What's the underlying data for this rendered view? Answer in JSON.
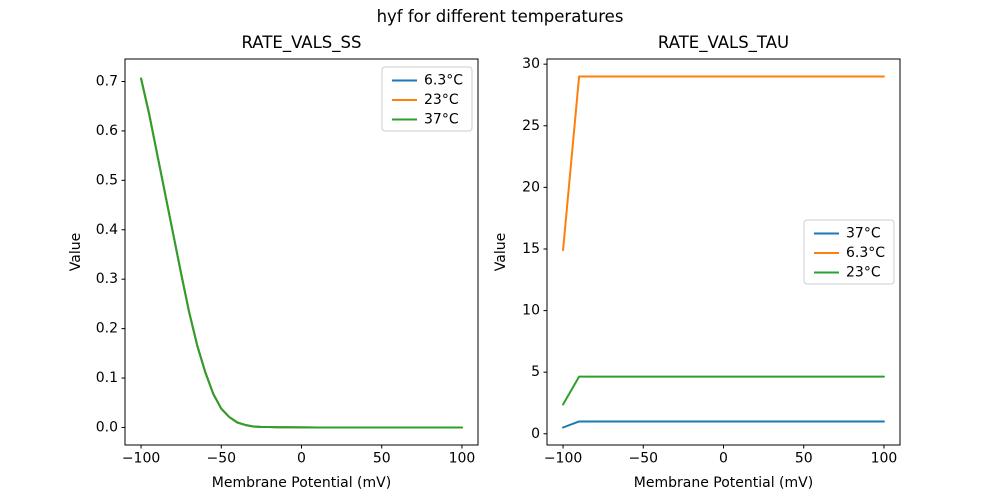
{
  "figure": {
    "title": "hyf for different temperatures",
    "background": "#ffffff"
  },
  "colors": {
    "blue": "#1f77b4",
    "orange": "#ff7f0e",
    "green": "#2ca02c",
    "spine": "#000000",
    "legend_border": "#cccccc",
    "legend_fill": "#ffffff",
    "text": "#000000"
  },
  "chart_data": [
    {
      "type": "line",
      "title": "RATE_VALS_SS",
      "xlabel": "Membrane Potential (mV)",
      "ylabel": "Value",
      "xlim": [
        -110,
        110
      ],
      "ylim": [
        -0.0355,
        0.7455
      ],
      "xticks": [
        -100,
        -50,
        0,
        50,
        100
      ],
      "xtick_labels": [
        "−100",
        "−50",
        "0",
        "50",
        "100"
      ],
      "yticks": [
        0.0,
        0.1,
        0.2,
        0.3,
        0.4,
        0.5,
        0.6,
        0.7
      ],
      "ytick_labels": [
        "0.0",
        "0.1",
        "0.2",
        "0.3",
        "0.4",
        "0.5",
        "0.6",
        "0.7"
      ],
      "grid": false,
      "legend_position": "upper-right",
      "overlap_note": "all three temperature curves coincide exactly; green (37°C) drawn last on top",
      "x": [
        -100,
        -95,
        -90,
        -85,
        -80,
        -75,
        -70,
        -65,
        -60,
        -55,
        -50,
        -45,
        -40,
        -35,
        -30,
        -25,
        -20,
        -15,
        -10,
        0,
        10,
        20,
        30,
        40,
        50,
        60,
        70,
        80,
        90,
        100
      ],
      "series": [
        {
          "name": "6.3°C",
          "color": "#1f77b4",
          "values": [
            0.706,
            0.635,
            0.554,
            0.473,
            0.392,
            0.311,
            0.233,
            0.166,
            0.112,
            0.068,
            0.038,
            0.021,
            0.01,
            0.005,
            0.002,
            0.001,
            0.001,
            0.0005,
            0.0003,
            0.0001,
            0,
            0,
            0,
            0,
            0,
            0,
            0,
            0,
            0,
            0
          ]
        },
        {
          "name": "23°C",
          "color": "#ff7f0e",
          "values": [
            0.706,
            0.635,
            0.554,
            0.473,
            0.392,
            0.311,
            0.233,
            0.166,
            0.112,
            0.068,
            0.038,
            0.021,
            0.01,
            0.005,
            0.002,
            0.001,
            0.001,
            0.0005,
            0.0003,
            0.0001,
            0,
            0,
            0,
            0,
            0,
            0,
            0,
            0,
            0,
            0
          ]
        },
        {
          "name": "37°C",
          "color": "#2ca02c",
          "values": [
            0.706,
            0.635,
            0.554,
            0.473,
            0.392,
            0.311,
            0.233,
            0.166,
            0.112,
            0.068,
            0.038,
            0.021,
            0.01,
            0.005,
            0.002,
            0.001,
            0.001,
            0.0005,
            0.0003,
            0.0001,
            0,
            0,
            0,
            0,
            0,
            0,
            0,
            0,
            0,
            0
          ]
        }
      ]
    },
    {
      "type": "line",
      "title": "RATE_VALS_TAU",
      "xlabel": "Membrane Potential (mV)",
      "ylabel": "Value",
      "xlim": [
        -110,
        110
      ],
      "ylim": [
        -0.91,
        30.42
      ],
      "xticks": [
        -100,
        -50,
        0,
        50,
        100
      ],
      "xtick_labels": [
        "−100",
        "−50",
        "0",
        "50",
        "100"
      ],
      "yticks": [
        0,
        5,
        10,
        15,
        20,
        25,
        30
      ],
      "ytick_labels": [
        "0",
        "5",
        "10",
        "15",
        "20",
        "25",
        "30"
      ],
      "grid": false,
      "legend_position": "center-right",
      "x": [
        -100,
        -90,
        -80,
        -70,
        -60,
        -50,
        -40,
        -30,
        -20,
        -10,
        0,
        10,
        20,
        30,
        40,
        50,
        60,
        70,
        80,
        90,
        100
      ],
      "series": [
        {
          "name": "37°C",
          "color": "#1f77b4",
          "values": [
            0.51,
            1.0,
            1.0,
            1.0,
            1.0,
            1.0,
            1.0,
            1.0,
            1.0,
            1.0,
            1.0,
            1.0,
            1.0,
            1.0,
            1.0,
            1.0,
            1.0,
            1.0,
            1.0,
            1.0,
            1.0
          ]
        },
        {
          "name": "6.3°C",
          "color": "#ff7f0e",
          "values": [
            14.9,
            29.0,
            29.0,
            29.0,
            29.0,
            29.0,
            29.0,
            29.0,
            29.0,
            29.0,
            29.0,
            29.0,
            29.0,
            29.0,
            29.0,
            29.0,
            29.0,
            29.0,
            29.0,
            29.0,
            29.0
          ]
        },
        {
          "name": "23°C",
          "color": "#2ca02c",
          "values": [
            2.38,
            4.64,
            4.64,
            4.64,
            4.64,
            4.64,
            4.64,
            4.64,
            4.64,
            4.64,
            4.64,
            4.64,
            4.64,
            4.64,
            4.64,
            4.64,
            4.64,
            4.64,
            4.64,
            4.64,
            4.64
          ]
        }
      ]
    }
  ]
}
